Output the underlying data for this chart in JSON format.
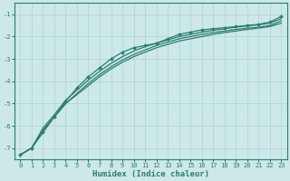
{
  "x": [
    0,
    1,
    2,
    3,
    4,
    5,
    6,
    7,
    8,
    9,
    10,
    11,
    12,
    13,
    14,
    15,
    16,
    17,
    18,
    19,
    20,
    21,
    22,
    23
  ],
  "line1": [
    -7.3,
    -7.0,
    -6.3,
    -5.6,
    -4.9,
    -4.3,
    -3.8,
    -3.4,
    -3.0,
    -2.7,
    -2.5,
    -2.4,
    -2.3,
    -2.1,
    -1.9,
    -1.8,
    -1.7,
    -1.65,
    -1.6,
    -1.55,
    -1.5,
    -1.45,
    -1.35,
    -1.1
  ],
  "line2": [
    -7.3,
    -7.0,
    -6.2,
    -5.6,
    -5.0,
    -4.55,
    -4.1,
    -3.7,
    -3.35,
    -3.05,
    -2.8,
    -2.6,
    -2.4,
    -2.25,
    -2.1,
    -2.0,
    -1.9,
    -1.82,
    -1.75,
    -1.68,
    -1.62,
    -1.58,
    -1.5,
    -1.3
  ],
  "line3": [
    -7.3,
    -7.0,
    -6.2,
    -5.6,
    -5.0,
    -4.6,
    -4.2,
    -3.8,
    -3.45,
    -3.15,
    -2.9,
    -2.7,
    -2.5,
    -2.35,
    -2.2,
    -2.1,
    -2.0,
    -1.9,
    -1.82,
    -1.75,
    -1.68,
    -1.62,
    -1.55,
    -1.4
  ],
  "line4": [
    -7.3,
    -7.0,
    -6.1,
    -5.5,
    -4.85,
    -4.4,
    -3.95,
    -3.55,
    -3.2,
    -2.9,
    -2.65,
    -2.45,
    -2.3,
    -2.15,
    -2.0,
    -1.9,
    -1.8,
    -1.72,
    -1.65,
    -1.58,
    -1.52,
    -1.47,
    -1.4,
    -1.2
  ],
  "bg_color": "#cce8e8",
  "grid_color": "#aad4d4",
  "line_color": "#2d7d6e",
  "marker_color": "#2d7d6e",
  "xlabel": "Humidex (Indice chaleur)",
  "xlim": [
    -0.5,
    23.5
  ],
  "ylim": [
    -7.5,
    -0.5
  ],
  "yticks": [
    -7,
    -6,
    -5,
    -4,
    -3,
    -2,
    -1
  ],
  "xticks": [
    0,
    1,
    2,
    3,
    4,
    5,
    6,
    7,
    8,
    9,
    10,
    11,
    12,
    13,
    14,
    15,
    16,
    17,
    18,
    19,
    20,
    21,
    22,
    23
  ],
  "tick_fontsize": 5.0,
  "xlabel_fontsize": 6.5
}
